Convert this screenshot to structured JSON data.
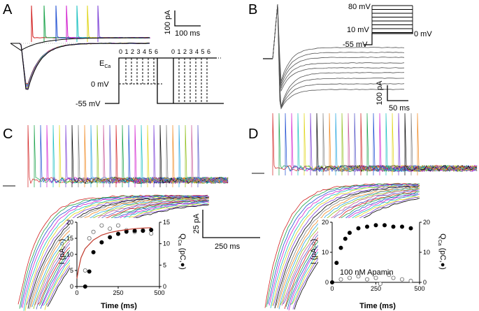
{
  "figure": {
    "panel_a": {
      "letter": "A",
      "scale_current": "100 pA",
      "scale_time": "100 ms",
      "protocol_label_eca": "E",
      "protocol_label_eca_sub": "Ca",
      "protocol_label_0mv": "0 mV",
      "protocol_label_m55": "-55 mV",
      "step_numbers_left": "0 1 2 3 4 5 6",
      "step_numbers_right": "0 1 2 3 4 5 6",
      "trace_colors": [
        "#d21f1f",
        "#1aa34a",
        "#1f4fd2",
        "#d21fcf",
        "#18c0c0",
        "#e0d61a",
        "#7b3fd6",
        "#000000",
        "#808080"
      ]
    },
    "panel_b": {
      "letter": "B",
      "protocol_top": "80 mV",
      "protocol_mid": "10 mV",
      "protocol_bottom": "-55 mV",
      "protocol_right": "0 mV",
      "scale_current": "100 pA",
      "scale_time": "50 ms"
    },
    "panel_c": {
      "letter": "C",
      "inset_ylabel_left": "I (pA,○)",
      "inset_ylabel_right": "Q",
      "inset_ylabel_right_sub": "Ca",
      "inset_ylabel_right_unit": " (pC,●)",
      "inset_xlabel": "Time (ms)",
      "fit_color": "#c0392b"
    },
    "panel_d": {
      "letter": "D",
      "inset_ylabel_left": "I (pA,○)",
      "inset_ylabel_right": "Q",
      "inset_ylabel_right_sub": "Ca",
      "inset_ylabel_right_unit": " (pC,●)",
      "inset_xlabel": "Time (ms)",
      "annotation": "100 nM Apamin"
    },
    "shared_scale": {
      "current": "25 pA",
      "time": "250 ms"
    }
  },
  "chart_data": [
    {
      "type": "scatter",
      "panel": "C-inset",
      "title": "",
      "xlabel": "Time (ms)",
      "ylabel_left": "I (pA, open circles)",
      "ylabel_right": "QCa (pC, filled circles)",
      "xlim": [
        0,
        500
      ],
      "ylim_left": [
        0,
        20
      ],
      "ylim_right": [
        0,
        15
      ],
      "x_ticks": [
        0,
        250,
        500
      ],
      "y_ticks_left": [
        0,
        5,
        10,
        15,
        20
      ],
      "y_ticks_right": [
        0,
        5,
        10,
        15
      ],
      "series": [
        {
          "name": "I (pA)",
          "marker": "open-circle",
          "axis": "left",
          "x": [
            50,
            75,
            100,
            150,
            200,
            250,
            300,
            350,
            400,
            450
          ],
          "y": [
            5,
            15,
            17,
            19,
            18,
            19,
            17.5,
            17,
            17.5,
            16.5
          ]
        },
        {
          "name": "QCa (pC)",
          "marker": "filled-circle",
          "axis": "right",
          "x": [
            50,
            75,
            100,
            150,
            200,
            250,
            300,
            350,
            400,
            450
          ],
          "y": [
            0,
            3.5,
            8,
            10.3,
            11.5,
            12.3,
            12.8,
            13,
            13,
            13.2
          ]
        },
        {
          "name": "fit",
          "marker": "line",
          "axis": "left",
          "x": [
            0,
            10,
            25,
            50,
            100,
            150,
            200,
            250,
            300,
            350,
            400,
            450
          ],
          "y": [
            2.5,
            5.5,
            9,
            11.8,
            14.5,
            16,
            16.8,
            17.3,
            17.7,
            18,
            18.2,
            18.3
          ]
        }
      ]
    },
    {
      "type": "scatter",
      "panel": "D-inset",
      "title": "",
      "xlabel": "Time (ms)",
      "ylabel_left": "I (pA, open circles)",
      "ylabel_right": "QCa (pC, filled circles)",
      "xlim": [
        0,
        500
      ],
      "ylim_left": [
        0,
        20
      ],
      "ylim_right": [
        0,
        20
      ],
      "x_ticks": [
        0,
        250,
        500
      ],
      "y_ticks_left": [
        0,
        10,
        20
      ],
      "y_ticks_right": [
        0,
        10,
        20
      ],
      "annotation": "100 nM Apamin",
      "series": [
        {
          "name": "I (pA)",
          "marker": "open-circle",
          "axis": "left",
          "x": [
            50,
            100,
            150,
            200,
            250,
            275,
            325,
            350,
            400,
            450
          ],
          "y": [
            1,
            1.5,
            2,
            1,
            1.5,
            -0.5,
            2.5,
            1.5,
            1,
            0.5
          ]
        },
        {
          "name": "QCa (pC)",
          "marker": "filled-circle",
          "axis": "right",
          "x": [
            0,
            25,
            50,
            75,
            100,
            150,
            200,
            250,
            300,
            350,
            400,
            450
          ],
          "y": [
            0,
            6.5,
            11.5,
            14.5,
            16.5,
            18,
            18.5,
            19,
            19,
            18.5,
            18.5,
            18
          ]
        }
      ]
    }
  ]
}
